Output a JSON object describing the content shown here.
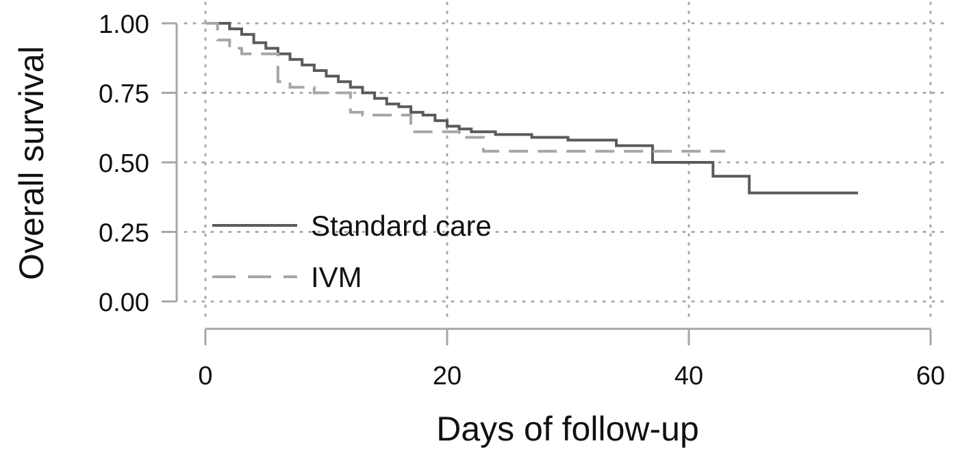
{
  "chart_data": {
    "type": "line",
    "subtype": "kaplan-meier-step",
    "title": "",
    "xlabel": "Days of follow-up",
    "ylabel": "Overall survival",
    "xlim": [
      0,
      60
    ],
    "ylim": [
      0,
      1
    ],
    "xticks": [
      0,
      20,
      40,
      60
    ],
    "xtick_labels": [
      "0",
      "20",
      "40",
      "60"
    ],
    "yticks": [
      0,
      0.25,
      0.5,
      0.75,
      1.0
    ],
    "ytick_labels": [
      "0.00",
      "0.25",
      "0.50",
      "0.75",
      "1.00"
    ],
    "grid": true,
    "legend_position": "bottom-left",
    "series": [
      {
        "name": "Standard care",
        "color": "#5a5a5a",
        "line_style": "solid",
        "x": [
          0,
          1.3,
          2,
          3,
          4,
          5,
          6,
          7,
          8,
          9,
          10,
          11,
          12,
          13,
          14,
          15,
          16,
          17,
          18,
          19,
          20,
          21,
          22,
          24,
          27,
          30,
          34,
          37,
          42,
          45,
          54
        ],
        "y": [
          1.0,
          1.0,
          0.98,
          0.96,
          0.93,
          0.91,
          0.89,
          0.87,
          0.85,
          0.83,
          0.81,
          0.79,
          0.77,
          0.75,
          0.73,
          0.71,
          0.7,
          0.68,
          0.67,
          0.65,
          0.63,
          0.62,
          0.61,
          0.6,
          0.59,
          0.58,
          0.56,
          0.5,
          0.45,
          0.39,
          0.39
        ]
      },
      {
        "name": "IVM",
        "color": "#a6a6a6",
        "line_style": "dashed",
        "x": [
          0,
          1,
          2,
          3,
          6,
          7,
          9,
          12,
          13,
          17,
          21,
          23,
          43
        ],
        "y": [
          1.0,
          0.94,
          0.91,
          0.89,
          0.79,
          0.77,
          0.75,
          0.68,
          0.67,
          0.61,
          0.59,
          0.54,
          0.54
        ]
      }
    ]
  }
}
